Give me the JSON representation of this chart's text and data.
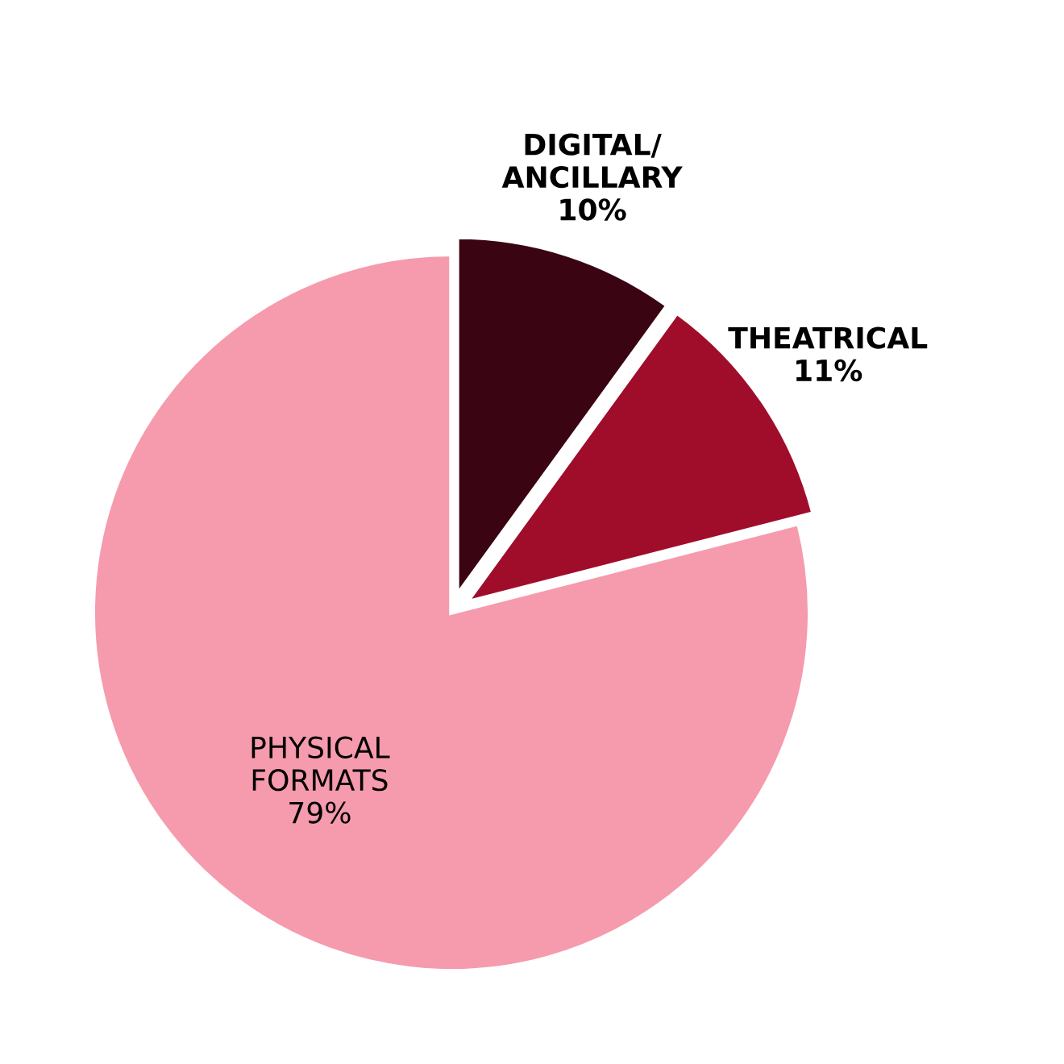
{
  "chart_data": {
    "type": "pie",
    "categories": [
      "DIGITAL/\nANCILLARY",
      "THEATRICAL",
      "PHYSICAL\nFORMATS"
    ],
    "values": [
      10,
      11,
      79
    ],
    "value_labels": [
      "10%",
      "11%",
      "79%"
    ],
    "colors": [
      "#3a0412",
      "#a00d2b",
      "#f59bad"
    ]
  }
}
